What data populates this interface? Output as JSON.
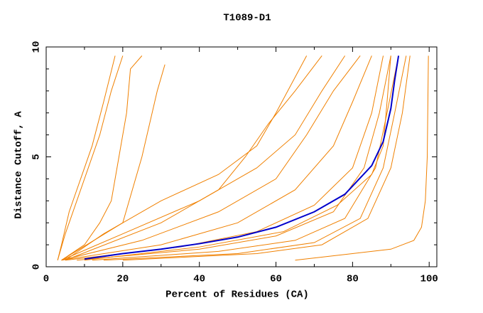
{
  "chart_data": {
    "type": "line",
    "title": "T1089-D1",
    "xlabel": "Percent of Residues (CA)",
    "ylabel": "Distance Cutoff, A",
    "xlim": [
      0,
      102
    ],
    "ylim": [
      0,
      10
    ],
    "xticks": [
      0,
      20,
      40,
      60,
      80,
      100
    ],
    "yticks": [
      0,
      5,
      10
    ],
    "xminorticks": [
      10,
      30,
      50,
      70,
      90
    ],
    "yminorticks": [
      1,
      2,
      3,
      4,
      6,
      7,
      8,
      9
    ],
    "series": [
      {
        "color": "#f08000",
        "x": [
          3,
          4,
          6,
          9,
          12,
          15,
          18
        ],
        "values": [
          0.3,
          1,
          2.5,
          4,
          5.5,
          7.5,
          9.6
        ]
      },
      {
        "color": "#f08000",
        "x": [
          3,
          5,
          8,
          11,
          14,
          17,
          20
        ],
        "values": [
          0.3,
          1.5,
          3,
          4.5,
          6,
          8,
          9.6
        ]
      },
      {
        "color": "#f08000",
        "x": [
          4,
          10,
          14,
          17,
          19,
          21,
          22,
          25
        ],
        "values": [
          0.3,
          1,
          2,
          3,
          5,
          7,
          9,
          9.6
        ]
      },
      {
        "color": "#f08000",
        "x": [
          4,
          20,
          25,
          29,
          31
        ],
        "values": [
          0.3,
          2,
          5,
          8,
          9.2
        ]
      },
      {
        "color": "#f08000",
        "x": [
          65,
          80,
          90,
          96,
          98,
          99,
          99.5,
          99.8
        ],
        "values": [
          0.3,
          0.6,
          0.8,
          1.2,
          1.8,
          3,
          5,
          9.6
        ]
      },
      {
        "color": "#f08000",
        "x": [
          4,
          20,
          40,
          55,
          65,
          72,
          78
        ],
        "values": [
          0.3,
          1.5,
          3,
          4.5,
          6,
          8,
          9.6
        ]
      },
      {
        "color": "#f08000",
        "x": [
          4,
          25,
          45,
          60,
          68,
          75,
          82
        ],
        "values": [
          0.3,
          1.2,
          2.5,
          4,
          6,
          8,
          9.6
        ]
      },
      {
        "color": "#f08000",
        "x": [
          4,
          30,
          50,
          65,
          75,
          80,
          85
        ],
        "values": [
          0.3,
          1,
          2,
          3.5,
          5.5,
          7.5,
          9.6
        ]
      },
      {
        "color": "#f08000",
        "x": [
          5,
          35,
          55,
          70,
          80,
          85,
          88
        ],
        "values": [
          0.3,
          0.9,
          1.6,
          2.8,
          4.5,
          7,
          9.6
        ]
      },
      {
        "color": "#f08000",
        "x": [
          8,
          40,
          60,
          75,
          83,
          87,
          90
        ],
        "values": [
          0.3,
          0.8,
          1.4,
          2.5,
          4.5,
          7,
          9.6
        ]
      },
      {
        "color": "#f08000",
        "x": [
          12,
          45,
          65,
          78,
          86,
          89,
          92
        ],
        "values": [
          0.3,
          0.7,
          1.2,
          2.2,
          4.5,
          7,
          9.6
        ]
      },
      {
        "color": "#f08000",
        "x": [
          15,
          50,
          70,
          82,
          88,
          91,
          94
        ],
        "values": [
          0.3,
          0.6,
          1.1,
          2.2,
          4.5,
          7,
          9.6
        ]
      },
      {
        "color": "#f08000",
        "x": [
          20,
          55,
          72,
          84,
          90,
          93,
          95
        ],
        "values": [
          0.3,
          0.6,
          1,
          2.2,
          4.5,
          7,
          9.6
        ]
      },
      {
        "color": "#f08000",
        "x": [
          5,
          30,
          45,
          52,
          58,
          65,
          72
        ],
        "values": [
          0.3,
          2,
          3.5,
          5,
          6.5,
          8,
          9.6
        ]
      },
      {
        "color": "#f08000",
        "x": [
          5,
          15,
          30,
          45,
          55,
          60,
          68
        ],
        "values": [
          0.3,
          1.5,
          3,
          4.2,
          5.5,
          7,
          9.6
        ]
      },
      {
        "color": "#f08000",
        "x": [
          10,
          40,
          62,
          76,
          85,
          88,
          89,
          90
        ],
        "values": [
          0.3,
          0.9,
          1.6,
          2.8,
          4.2,
          5.5,
          7.5,
          9.6
        ]
      },
      {
        "color": "#0000cc",
        "x": [
          10,
          20,
          30,
          40,
          50,
          60,
          70,
          78,
          85,
          88,
          90,
          91,
          92
        ],
        "values": [
          0.35,
          0.6,
          0.8,
          1.05,
          1.35,
          1.8,
          2.5,
          3.3,
          4.6,
          5.7,
          7.2,
          8.5,
          9.6
        ]
      }
    ]
  }
}
